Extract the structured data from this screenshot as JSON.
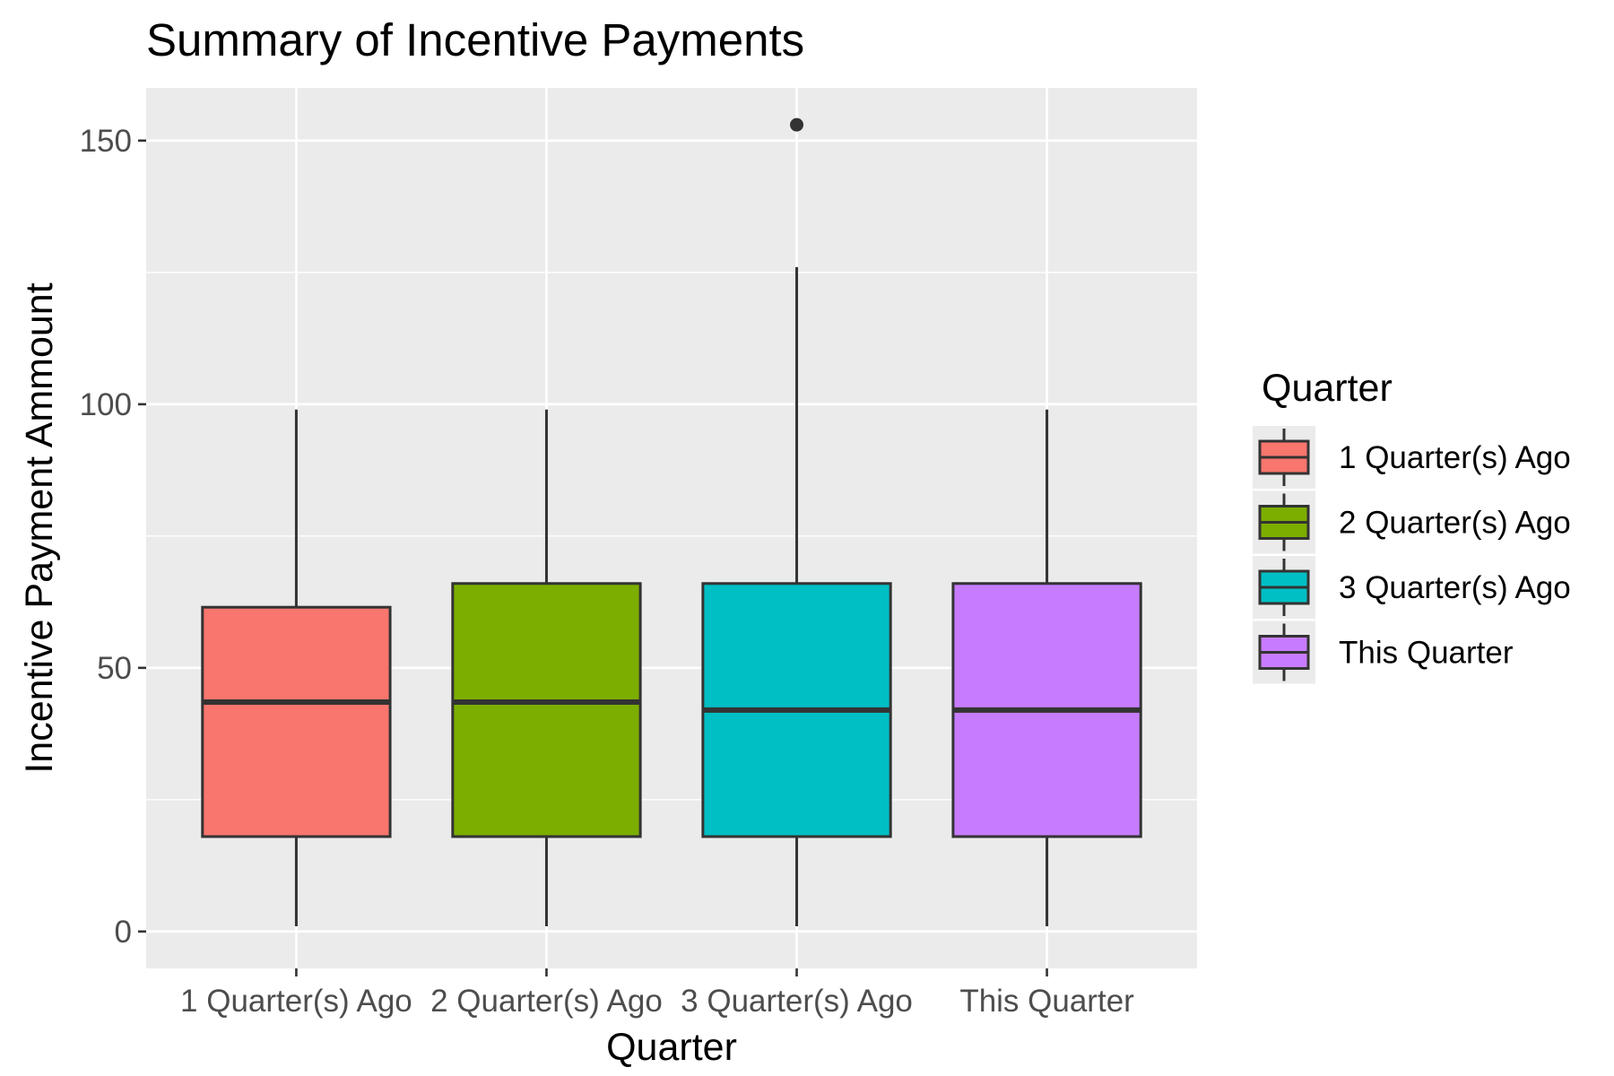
{
  "chart_data": {
    "type": "boxplot",
    "title": "Summary of Incentive Payments",
    "xlabel": "Quarter",
    "ylabel": "Incentive Payment Ammount",
    "ylim": [
      -7,
      160
    ],
    "yticks": [
      0,
      50,
      100,
      150
    ],
    "ytick_labels": [
      "0",
      "50",
      "100",
      "150"
    ],
    "categories": [
      "1 Quarter(s) Ago",
      "2 Quarter(s) Ago",
      "3 Quarter(s) Ago",
      "This Quarter"
    ],
    "grid": true,
    "legend": {
      "title": "Quarter",
      "placement": "right",
      "entries": [
        "1 Quarter(s) Ago",
        "2 Quarter(s) Ago",
        "3 Quarter(s) Ago",
        "This Quarter"
      ]
    },
    "series": [
      {
        "name": "1 Quarter(s) Ago",
        "color": "#F8766D",
        "min": 1,
        "q1": 18,
        "median": 43.5,
        "q3": 61.5,
        "max": 99,
        "outliers": []
      },
      {
        "name": "2 Quarter(s) Ago",
        "color": "#7CAE00",
        "min": 1,
        "q1": 18,
        "median": 43.5,
        "q3": 66,
        "max": 99,
        "outliers": []
      },
      {
        "name": "3 Quarter(s) Ago",
        "color": "#00BFC4",
        "min": 1,
        "q1": 18,
        "median": 42,
        "q3": 66,
        "max": 126,
        "outliers": [
          153
        ]
      },
      {
        "name": "This Quarter",
        "color": "#C77CFF",
        "min": 1,
        "q1": 18,
        "median": 42,
        "q3": 66,
        "max": 99,
        "outliers": []
      }
    ],
    "colors": {
      "panel_background": "#EBEBEB",
      "gridline": "#FFFFFF",
      "box_outline": "#333333",
      "tick_text": "#4D4D4D",
      "outlier_point": "#333333"
    }
  }
}
